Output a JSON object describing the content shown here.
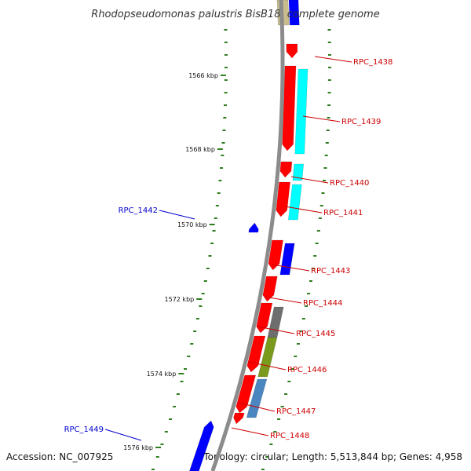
{
  "title": "Rhodopseudomonas palustris BisB18, complete genome",
  "accession": "Accession: NC_007925",
  "topology": "Topology: circular; Length: 5,513,844 bp; Genes: 4,958",
  "colors": {
    "backbone": "#8c8c8c",
    "tick": "#2e7d1e",
    "label_forward": "#cc0000",
    "label_reverse": "#0000cc",
    "gene_red": "#ff0000",
    "gene_blue": "#0000ff",
    "gene_cyan": "#00ffff",
    "gene_grey": "#6e6e6e",
    "gene_olive": "#7a9a1e",
    "gene_steel": "#4a86c0",
    "gene_tan": "#c9bd8e"
  },
  "scale_labels": [
    "1566 kbp",
    "1568 kbp",
    "1570 kbp",
    "1572 kbp",
    "1574 kbp",
    "1576 kbp"
  ],
  "gene_labels": [
    {
      "id": "RPC_1438",
      "strand": "forward"
    },
    {
      "id": "RPC_1439",
      "strand": "forward"
    },
    {
      "id": "RPC_1440",
      "strand": "forward"
    },
    {
      "id": "RPC_1441",
      "strand": "forward"
    },
    {
      "id": "RPC_1442",
      "strand": "reverse"
    },
    {
      "id": "RPC_1443",
      "strand": "forward"
    },
    {
      "id": "RPC_1444",
      "strand": "forward"
    },
    {
      "id": "RPC_1445",
      "strand": "forward"
    },
    {
      "id": "RPC_1446",
      "strand": "forward"
    },
    {
      "id": "RPC_1447",
      "strand": "forward"
    },
    {
      "id": "RPC_1448",
      "strand": "forward"
    },
    {
      "id": "RPC_1449",
      "strand": "reverse"
    }
  ]
}
